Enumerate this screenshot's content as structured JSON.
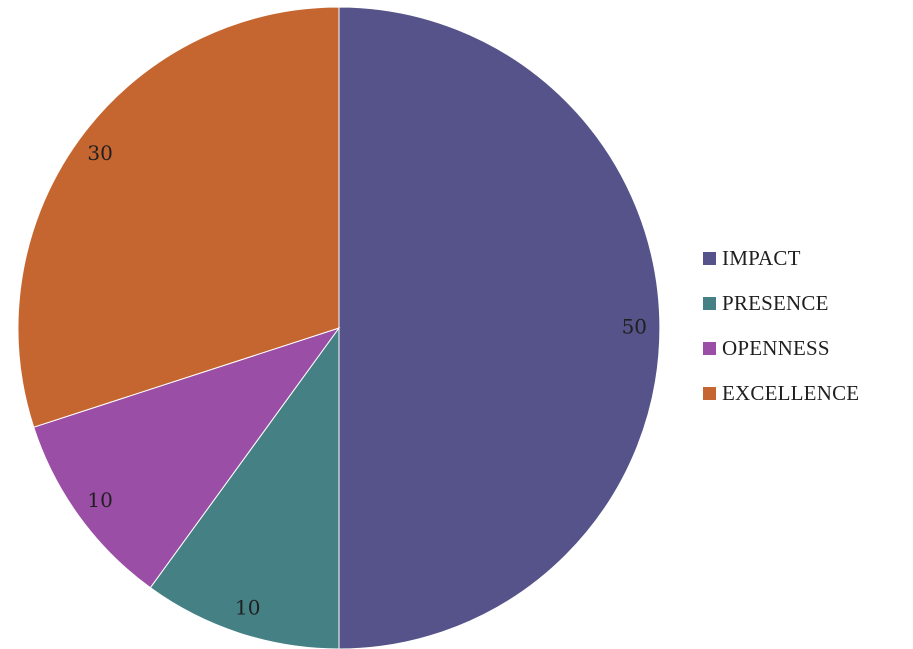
{
  "chart_data": {
    "type": "pie",
    "title": "",
    "slices": [
      {
        "label": "IMPACT",
        "value": 50,
        "data_label": "50",
        "color": "#55538a"
      },
      {
        "label": "PRESENCE",
        "value": 10,
        "data_label": "10",
        "color": "#448084"
      },
      {
        "label": "OPENNESS",
        "value": 10,
        "data_label": "10",
        "color": "#9b4ea5"
      },
      {
        "label": "EXCELLENCE",
        "value": 30,
        "data_label": "30",
        "color": "#c56630"
      }
    ],
    "start_angle_deg": 0,
    "direction": "clockwise",
    "legend_position": "right"
  }
}
